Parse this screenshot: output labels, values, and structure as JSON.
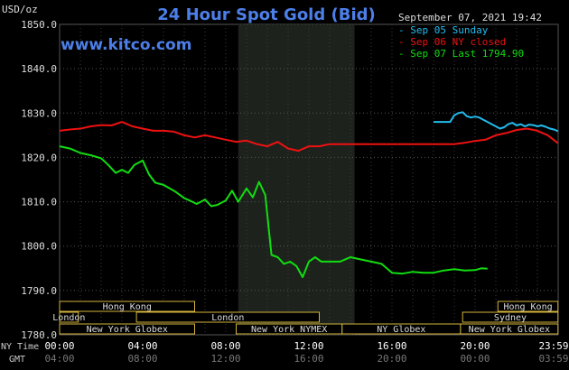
{
  "chart_data": {
    "type": "line",
    "title": "24 Hour Spot Gold (Bid)",
    "website": "www.kitco.com",
    "ylabel": "USD/oz",
    "timestamp": "September 07, 2021 19:42",
    "ylim": [
      1780,
      1850
    ],
    "yticks": [
      "1850.0",
      "1840.0",
      "1830.0",
      "1820.0",
      "1810.0",
      "1800.0",
      "1790.0",
      "1780.0"
    ],
    "ytick_values": [
      1850,
      1840,
      1830,
      1820,
      1810,
      1800,
      1790,
      1780
    ],
    "xlim": [
      0,
      24
    ],
    "ny_time_label": "NY Time",
    "gmt_label": "GMT",
    "ny_ticks": [
      "00:00",
      "04:00",
      "08:00",
      "12:00",
      "16:00",
      "20:00",
      "23:59"
    ],
    "ny_tick_hours": [
      0,
      4,
      8,
      12,
      16,
      20,
      24
    ],
    "gmt_ticks": [
      "04:00",
      "08:00",
      "12:00",
      "16:00",
      "20:00",
      "00:00",
      "03:59"
    ],
    "grid": true,
    "legend_position": "top-right",
    "shaded_region_hours": [
      8.6,
      14.2
    ],
    "series": [
      {
        "name": "Sep 05 Sunday",
        "color": "#22BBEE",
        "x": [
          18.0,
          18.4,
          18.8,
          19.0,
          19.2,
          19.4,
          19.6,
          19.8,
          20.0,
          20.2,
          20.4,
          20.6,
          20.8,
          21.0,
          21.2,
          21.4,
          21.6,
          21.8,
          22.0,
          22.2,
          22.4,
          22.6,
          22.8,
          23.0,
          23.2,
          23.4,
          23.6,
          23.8,
          23.99
        ],
        "y": [
          1828.0,
          1828.0,
          1828.0,
          1829.5,
          1830.0,
          1830.2,
          1829.3,
          1829.0,
          1829.2,
          1829.0,
          1828.5,
          1828.0,
          1827.5,
          1827.0,
          1826.5,
          1826.8,
          1827.5,
          1827.8,
          1827.2,
          1827.5,
          1827.0,
          1827.4,
          1827.3,
          1827.0,
          1827.2,
          1826.9,
          1826.5,
          1826.3,
          1825.9
        ]
      },
      {
        "name": "Sep 06 NY closed",
        "color": "#EE1111",
        "x": [
          0,
          0.5,
          1.0,
          1.5,
          2.0,
          2.5,
          3.0,
          3.5,
          4.0,
          4.5,
          5.0,
          5.5,
          6.0,
          6.5,
          7.0,
          7.5,
          8.0,
          8.5,
          9.0,
          9.5,
          10.0,
          10.5,
          11.0,
          11.5,
          12.0,
          12.5,
          13.0,
          14.0,
          15.0,
          16.0,
          17.0,
          18.0,
          19.0,
          19.5,
          20.0,
          20.5,
          21.0,
          21.5,
          22.0,
          22.5,
          23.0,
          23.5,
          23.99
        ],
        "y": [
          1826.0,
          1826.3,
          1826.5,
          1827.0,
          1827.3,
          1827.2,
          1828.0,
          1827.0,
          1826.5,
          1826.0,
          1826.0,
          1825.8,
          1825.0,
          1824.5,
          1825.0,
          1824.5,
          1824.0,
          1823.5,
          1823.8,
          1823.0,
          1822.5,
          1823.5,
          1822.0,
          1821.5,
          1822.5,
          1822.5,
          1823.0,
          1823.0,
          1823.0,
          1823.0,
          1823.0,
          1823.0,
          1823.0,
          1823.3,
          1823.7,
          1824.0,
          1825.0,
          1825.5,
          1826.2,
          1826.5,
          1826.0,
          1825.0,
          1823.2
        ]
      },
      {
        "name": "Sep 07 Last 1794.90",
        "color": "#11DD11",
        "x": [
          0,
          0.5,
          1.0,
          1.5,
          2.0,
          2.3,
          2.7,
          3.0,
          3.3,
          3.6,
          4.0,
          4.3,
          4.6,
          5.0,
          5.3,
          5.6,
          6.0,
          6.3,
          6.6,
          7.0,
          7.3,
          7.6,
          8.0,
          8.3,
          8.6,
          9.0,
          9.3,
          9.6,
          9.9,
          10.2,
          10.5,
          10.8,
          11.1,
          11.4,
          11.7,
          12.0,
          12.3,
          12.6,
          13.0,
          13.5,
          14.0,
          14.5,
          15.0,
          15.5,
          16.0,
          16.5,
          17.0,
          17.5,
          18.0,
          18.5,
          19.0,
          19.5,
          20.0,
          20.3,
          20.6
        ],
        "y": [
          1822.5,
          1822.0,
          1821.0,
          1820.5,
          1819.8,
          1818.5,
          1816.5,
          1817.2,
          1816.5,
          1818.3,
          1819.3,
          1816.2,
          1814.3,
          1813.8,
          1813.0,
          1812.2,
          1810.8,
          1810.2,
          1809.5,
          1810.5,
          1809.0,
          1809.3,
          1810.3,
          1812.5,
          1810.0,
          1813.0,
          1811.0,
          1814.5,
          1811.5,
          1798.0,
          1797.5,
          1796.0,
          1796.5,
          1795.5,
          1793.0,
          1796.5,
          1797.5,
          1796.5,
          1796.5,
          1796.5,
          1797.5,
          1797.0,
          1796.5,
          1796.0,
          1794.0,
          1793.8,
          1794.2,
          1794.0,
          1794.0,
          1794.5,
          1794.8,
          1794.5,
          1794.6,
          1795.0,
          1794.9
        ]
      }
    ],
    "market_sessions": [
      {
        "label": "Hong Kong",
        "row": 0,
        "start": 0,
        "end": 6.5
      },
      {
        "label": "Hong Kong",
        "row": 0,
        "start": 21.1,
        "end": 23.99
      },
      {
        "label": "London",
        "row": 1,
        "start": 0,
        "end": 0.9
      },
      {
        "label": "London",
        "row": 1,
        "start": 3.7,
        "end": 12.5
      },
      {
        "label": "Sydney",
        "row": 1,
        "start": 19.4,
        "end": 23.99
      },
      {
        "label": "New York Globex",
        "row": 2,
        "start": 0,
        "end": 6.5
      },
      {
        "label": "New York NYMEX",
        "row": 2,
        "start": 8.5,
        "end": 13.6
      },
      {
        "label": "NY Globex",
        "row": 2,
        "start": 13.6,
        "end": 19.3
      },
      {
        "label": "New York Globex",
        "row": 2,
        "start": 19.3,
        "end": 23.99
      }
    ]
  }
}
